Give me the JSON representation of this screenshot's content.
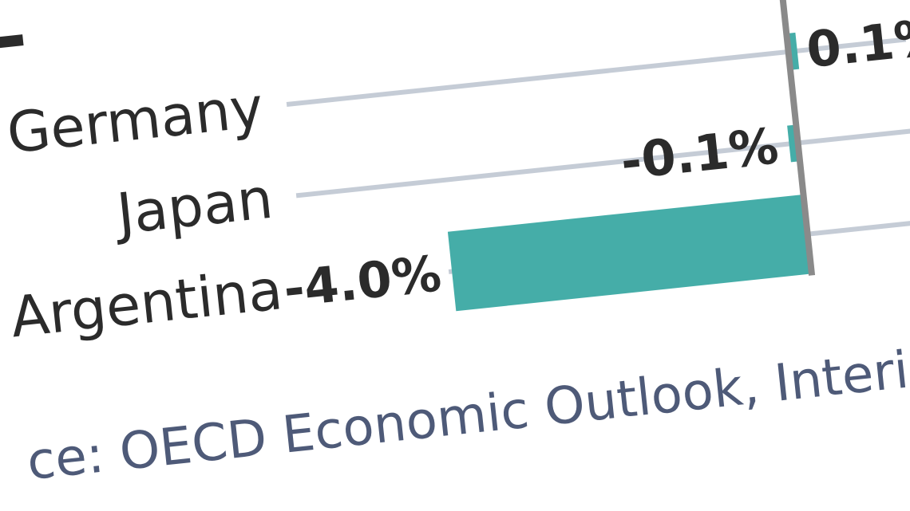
{
  "chart_data": {
    "type": "bar",
    "orientation": "horizontal",
    "categories": [
      "Germany",
      "Japan",
      "Argentina"
    ],
    "values": [
      0.1,
      -0.1,
      -4.0
    ],
    "value_labels": [
      "0.1%",
      "-0.1%",
      "-4.0%"
    ],
    "bar_color": "#45ada8",
    "gridline_color": "#c5ccd6",
    "zero_line_color": "#8a8a8a"
  },
  "source": {
    "text": "ce: OECD Economic Outlook, Interi"
  }
}
